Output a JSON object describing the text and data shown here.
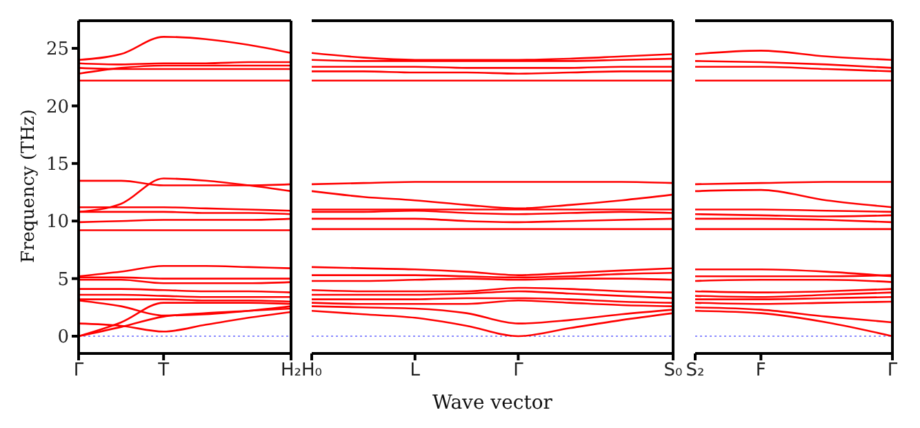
{
  "chart_data": [
    {
      "type": "line",
      "ylabel": "Frequency (THz)",
      "categories": [
        "Γ",
        null,
        "T",
        null,
        null,
        "H₂"
      ],
      "ylim": [
        -1.5,
        27.4
      ],
      "yticks": [
        0,
        5,
        10,
        15,
        20,
        25
      ],
      "ref_lines": [
        {
          "axis": "y",
          "value": 0,
          "label": null,
          "color": "#6666ff",
          "line_style": "dotted"
        }
      ],
      "line_style": "solid",
      "series": [
        {
          "color": "#ff0000",
          "values": [
            24.0,
            24.5,
            26.0,
            25.8,
            25.3,
            24.6
          ]
        },
        {
          "color": "#ff0000",
          "values": [
            23.7,
            23.6,
            23.7,
            23.7,
            23.8,
            23.8
          ]
        },
        {
          "color": "#ff0000",
          "values": [
            22.8,
            23.3,
            23.5,
            23.5,
            23.5,
            23.5
          ]
        },
        {
          "color": "#ff0000",
          "values": [
            23.3,
            23.2,
            23.2,
            23.2,
            23.2,
            23.2
          ]
        },
        {
          "color": "#ff0000",
          "values": [
            22.2,
            22.2,
            22.2,
            22.2,
            22.2,
            22.2
          ]
        },
        {
          "color": "#ff0000",
          "values": [
            13.5,
            13.5,
            13.1,
            13.1,
            13.1,
            13.2
          ]
        },
        {
          "color": "#ff0000",
          "values": [
            10.8,
            11.5,
            13.7,
            13.5,
            13.1,
            12.6
          ]
        },
        {
          "color": "#ff0000",
          "values": [
            11.2,
            11.2,
            11.2,
            11.1,
            11.0,
            10.9
          ]
        },
        {
          "color": "#ff0000",
          "values": [
            10.8,
            10.8,
            10.8,
            10.7,
            10.7,
            10.6
          ]
        },
        {
          "color": "#ff0000",
          "values": [
            9.9,
            10.0,
            10.1,
            10.1,
            10.1,
            10.2
          ]
        },
        {
          "color": "#ff0000",
          "values": [
            9.2,
            9.2,
            9.2,
            9.2,
            9.2,
            9.2
          ]
        },
        {
          "color": "#ff0000",
          "values": [
            5.2,
            5.6,
            6.1,
            6.1,
            6.0,
            5.9
          ]
        },
        {
          "color": "#ff0000",
          "values": [
            5.1,
            5.1,
            5.0,
            5.0,
            5.0,
            5.0
          ]
        },
        {
          "color": "#ff0000",
          "values": [
            4.9,
            4.9,
            4.6,
            4.6,
            4.6,
            4.7
          ]
        },
        {
          "color": "#ff0000",
          "values": [
            4.1,
            4.1,
            4.0,
            3.9,
            3.9,
            3.8
          ]
        },
        {
          "color": "#ff0000",
          "values": [
            3.6,
            3.6,
            3.5,
            3.4,
            3.4,
            3.4
          ]
        },
        {
          "color": "#ff0000",
          "values": [
            3.2,
            3.2,
            3.2,
            3.1,
            3.1,
            3.0
          ]
        },
        {
          "color": "#ff0000",
          "values": [
            3.1,
            2.6,
            1.8,
            1.9,
            2.2,
            2.6
          ]
        },
        {
          "color": "#ff0000",
          "values": [
            1.1,
            0.9,
            0.4,
            1.0,
            1.6,
            2.1
          ]
        },
        {
          "color": "#ff0000",
          "values": [
            0,
            1.2,
            2.9,
            2.9,
            2.9,
            2.8
          ]
        },
        {
          "color": "#ff0000",
          "values": [
            0,
            0.8,
            1.7,
            2.0,
            2.2,
            2.4
          ]
        }
      ]
    },
    {
      "type": "line",
      "xlabel": "Wave vector",
      "categories": [
        "H₀",
        null,
        "L",
        null,
        "Γ",
        null,
        null,
        "S₀"
      ],
      "ylim": [
        -1.5,
        27.4
      ],
      "tick_labels": "x",
      "ref_lines": [
        {
          "axis": "y",
          "value": 0,
          "label": null,
          "color": "#6666ff",
          "line_style": "dotted"
        }
      ],
      "line_style": "solid",
      "series": [
        {
          "color": "#ff0000",
          "values": [
            24.6,
            24.2,
            24.0,
            24.0,
            24.0,
            24.1,
            24.3,
            24.5
          ]
        },
        {
          "color": "#ff0000",
          "values": [
            24.0,
            23.9,
            23.9,
            23.9,
            23.9,
            23.9,
            24.0,
            24.1
          ]
        },
        {
          "color": "#ff0000",
          "values": [
            23.4,
            23.4,
            23.4,
            23.3,
            23.3,
            23.3,
            23.4,
            23.4
          ]
        },
        {
          "color": "#ff0000",
          "values": [
            23.0,
            23.0,
            22.9,
            22.9,
            22.8,
            22.9,
            23.0,
            23.0
          ]
        },
        {
          "color": "#ff0000",
          "values": [
            22.2,
            22.2,
            22.2,
            22.2,
            22.2,
            22.2,
            22.2,
            22.2
          ]
        },
        {
          "color": "#ff0000",
          "values": [
            13.2,
            13.3,
            13.4,
            13.4,
            13.4,
            13.4,
            13.4,
            13.3
          ]
        },
        {
          "color": "#ff0000",
          "values": [
            12.6,
            12.1,
            11.8,
            11.4,
            11.1,
            11.4,
            11.8,
            12.3
          ]
        },
        {
          "color": "#ff0000",
          "values": [
            11.0,
            11.0,
            11.0,
            11.0,
            11.0,
            11.0,
            11.0,
            11.0
          ]
        },
        {
          "color": "#ff0000",
          "values": [
            10.8,
            10.8,
            10.9,
            10.7,
            10.6,
            10.7,
            10.8,
            10.7
          ]
        },
        {
          "color": "#ff0000",
          "values": [
            10.2,
            10.2,
            10.2,
            10.0,
            9.9,
            10.0,
            10.1,
            10.2
          ]
        },
        {
          "color": "#ff0000",
          "values": [
            9.3,
            9.3,
            9.3,
            9.3,
            9.3,
            9.3,
            9.3,
            9.3
          ]
        },
        {
          "color": "#ff0000",
          "values": [
            6.0,
            5.9,
            5.8,
            5.6,
            5.3,
            5.5,
            5.7,
            5.9
          ]
        },
        {
          "color": "#ff0000",
          "values": [
            5.3,
            5.3,
            5.3,
            5.2,
            5.1,
            5.2,
            5.4,
            5.5
          ]
        },
        {
          "color": "#ff0000",
          "values": [
            4.8,
            4.8,
            4.9,
            5.0,
            4.9,
            5.0,
            5.0,
            4.9
          ]
        },
        {
          "color": "#ff0000",
          "values": [
            4.0,
            3.9,
            3.9,
            3.9,
            4.2,
            4.1,
            3.9,
            3.8
          ]
        },
        {
          "color": "#ff0000",
          "values": [
            3.6,
            3.6,
            3.6,
            3.7,
            3.9,
            3.7,
            3.5,
            3.3
          ]
        },
        {
          "color": "#ff0000",
          "values": [
            3.2,
            3.2,
            3.2,
            3.3,
            3.3,
            3.2,
            3.0,
            2.9
          ]
        },
        {
          "color": "#ff0000",
          "values": [
            2.9,
            2.8,
            2.8,
            2.8,
            3.1,
            2.9,
            2.7,
            2.6
          ]
        },
        {
          "color": "#ff0000",
          "values": [
            2.6,
            2.5,
            2.4,
            2.0,
            1.1,
            1.4,
            1.9,
            2.3
          ]
        },
        {
          "color": "#ff0000",
          "values": [
            2.2,
            1.9,
            1.6,
            0.9,
            0,
            0.7,
            1.4,
            2.0
          ]
        }
      ]
    },
    {
      "type": "line",
      "categories": [
        "S₂",
        "F",
        null,
        "Γ"
      ],
      "ylim": [
        -1.5,
        27.4
      ],
      "tick_labels": "x",
      "ref_lines": [
        {
          "axis": "y",
          "value": 0,
          "label": null,
          "color": "#6666ff",
          "line_style": "dotted"
        }
      ],
      "line_style": "solid",
      "series": [
        {
          "color": "#ff0000",
          "values": [
            24.5,
            24.8,
            24.3,
            24.0
          ]
        },
        {
          "color": "#ff0000",
          "values": [
            23.9,
            23.8,
            23.6,
            23.3
          ]
        },
        {
          "color": "#ff0000",
          "values": [
            23.4,
            23.4,
            23.2,
            23.0
          ]
        },
        {
          "color": "#ff0000",
          "values": [
            22.2,
            22.2,
            22.2,
            22.2
          ]
        },
        {
          "color": "#ff0000",
          "values": [
            13.2,
            13.3,
            13.4,
            13.4
          ]
        },
        {
          "color": "#ff0000",
          "values": [
            12.6,
            12.7,
            11.8,
            11.2
          ]
        },
        {
          "color": "#ff0000",
          "values": [
            11.0,
            11.0,
            10.9,
            10.8
          ]
        },
        {
          "color": "#ff0000",
          "values": [
            10.6,
            10.5,
            10.4,
            10.5
          ]
        },
        {
          "color": "#ff0000",
          "values": [
            10.2,
            10.2,
            10.1,
            9.9
          ]
        },
        {
          "color": "#ff0000",
          "values": [
            9.3,
            9.3,
            9.3,
            9.3
          ]
        },
        {
          "color": "#ff0000",
          "values": [
            5.8,
            5.8,
            5.6,
            5.2
          ]
        },
        {
          "color": "#ff0000",
          "values": [
            5.2,
            5.2,
            5.2,
            5.3
          ]
        },
        {
          "color": "#ff0000",
          "values": [
            4.8,
            4.9,
            4.9,
            4.7
          ]
        },
        {
          "color": "#ff0000",
          "values": [
            3.9,
            3.8,
            3.9,
            4.1
          ]
        },
        {
          "color": "#ff0000",
          "values": [
            3.5,
            3.4,
            3.6,
            3.8
          ]
        },
        {
          "color": "#ff0000",
          "values": [
            3.2,
            3.2,
            3.3,
            3.4
          ]
        },
        {
          "color": "#ff0000",
          "values": [
            2.9,
            2.8,
            2.9,
            3.0
          ]
        },
        {
          "color": "#ff0000",
          "values": [
            2.5,
            2.3,
            1.7,
            1.2
          ]
        },
        {
          "color": "#ff0000",
          "values": [
            2.2,
            2.0,
            1.2,
            0
          ]
        }
      ]
    }
  ]
}
